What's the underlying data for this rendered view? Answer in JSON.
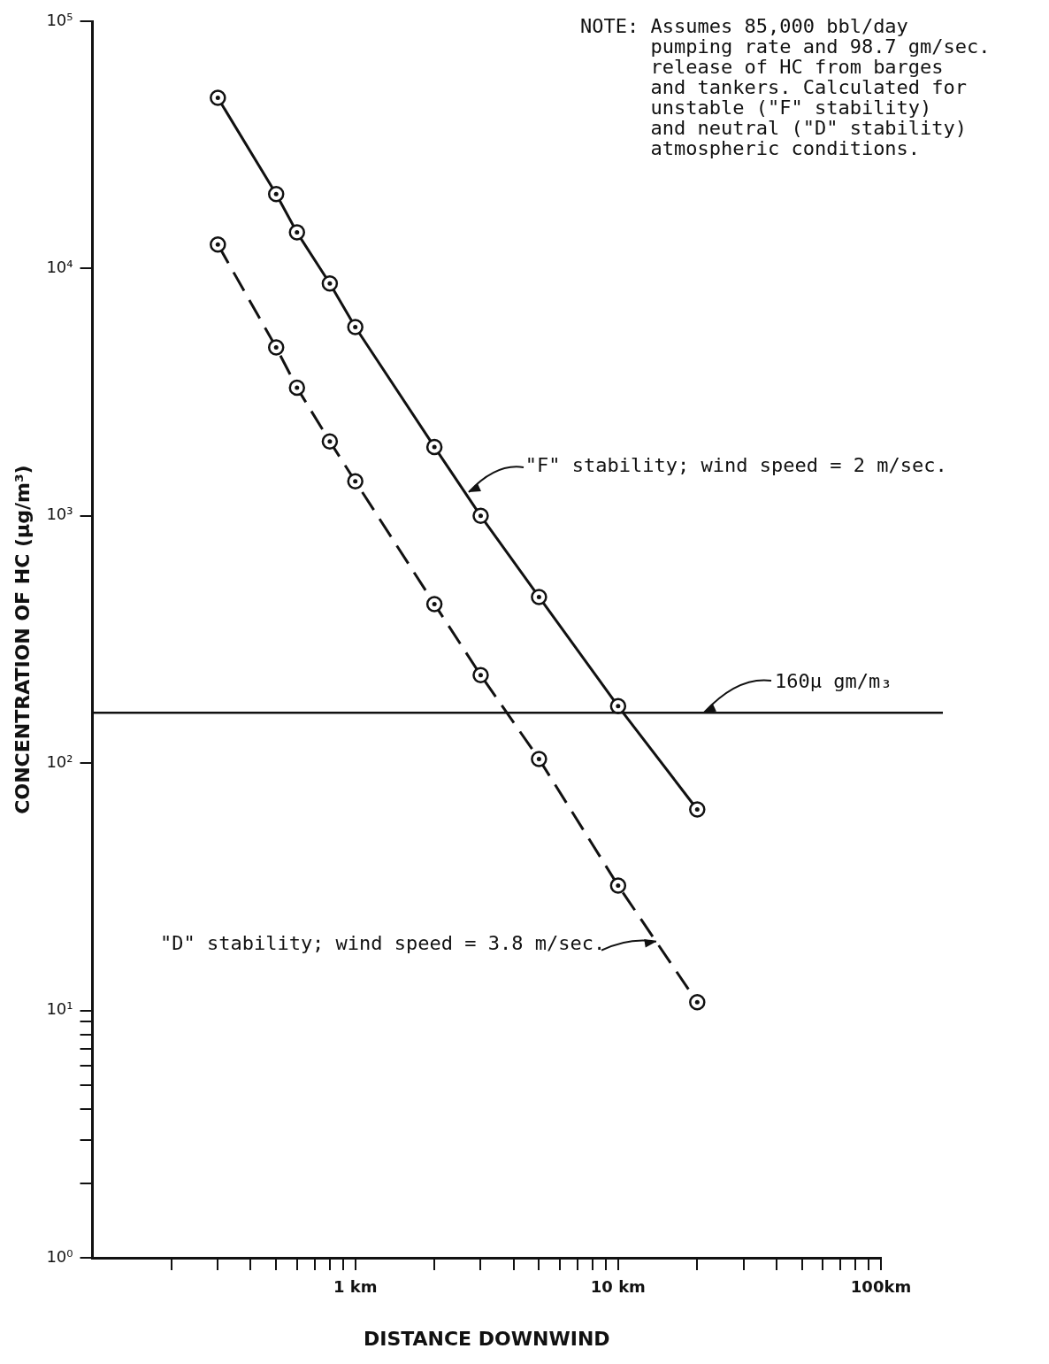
{
  "chart_data": {
    "type": "line",
    "xlabel": "DISTANCE DOWNWIND",
    "ylabel": "CONCENTRATION OF HC (μg/m³)",
    "log": "xy",
    "grid": false,
    "legend": false,
    "marker": "circle",
    "xlim": [
      0.1,
      100
    ],
    "xticks": [
      {
        "value": 0.2,
        "label": null
      },
      {
        "value": 0.3,
        "label": null
      },
      {
        "value": 0.4,
        "label": null
      },
      {
        "value": 0.5,
        "label": null
      },
      {
        "value": 0.6,
        "label": null
      },
      {
        "value": 0.7,
        "label": null
      },
      {
        "value": 0.8,
        "label": null
      },
      {
        "value": 0.9,
        "label": null
      },
      {
        "value": 1,
        "label": "1 km"
      },
      {
        "value": 2,
        "label": null
      },
      {
        "value": 3,
        "label": null
      },
      {
        "value": 4,
        "label": null
      },
      {
        "value": 5,
        "label": null
      },
      {
        "value": 6,
        "label": null
      },
      {
        "value": 7,
        "label": null
      },
      {
        "value": 8,
        "label": null
      },
      {
        "value": 9,
        "label": null
      },
      {
        "value": 10,
        "label": "10 km"
      },
      {
        "value": 20,
        "label": null
      },
      {
        "value": 30,
        "label": null
      },
      {
        "value": 40,
        "label": null
      },
      {
        "value": 50,
        "label": null
      },
      {
        "value": 60,
        "label": null
      },
      {
        "value": 70,
        "label": null
      },
      {
        "value": 80,
        "label": null
      },
      {
        "value": 90,
        "label": null
      },
      {
        "value": 100,
        "label": "100km"
      }
    ],
    "ylim": [
      1,
      100000
    ],
    "yticks": [
      {
        "value": 1,
        "label": "10⁰"
      },
      {
        "value": 2,
        "label": null
      },
      {
        "value": 3,
        "label": null
      },
      {
        "value": 4,
        "label": null
      },
      {
        "value": 5,
        "label": null
      },
      {
        "value": 6,
        "label": null
      },
      {
        "value": 7,
        "label": null
      },
      {
        "value": 8,
        "label": null
      },
      {
        "value": 9,
        "label": null
      },
      {
        "value": 10,
        "label": "10¹"
      },
      {
        "value": 100,
        "label": "10²"
      },
      {
        "value": 1000,
        "label": "10³"
      },
      {
        "value": 10000,
        "label": "10⁴"
      },
      {
        "value": 100000,
        "label": "10⁵"
      }
    ],
    "x": [
      0.3,
      0.5,
      0.6,
      0.8,
      1,
      2,
      3,
      5,
      10,
      20
    ],
    "series": [
      {
        "color": "#111111",
        "line_style": "solid",
        "values": [
          49000,
          20000,
          14000,
          8700,
          5800,
          1900,
          1000,
          470,
          170,
          65
        ]
      },
      {
        "color": "#111111",
        "line_style": "dashed",
        "values": [
          12500,
          4800,
          3300,
          2000,
          1380,
          440,
          227,
          104,
          32,
          10.8
        ]
      }
    ],
    "ref_lines": [
      {
        "axis": "y",
        "value": 160,
        "label": "160μ gm/m₃",
        "color": "#111111"
      }
    ],
    "annotations": [
      {
        "text": "\"F\" stability; wind speed = 2 m/sec.",
        "x": 2.7,
        "y": 1250
      },
      {
        "text": "\"D\" stability; wind speed = 3.8 m/sec.",
        "x": 14,
        "y": 19
      },
      "NOTE: Assumes 85,000 bbl/day\n      pumping rate and 98.7 gm/sec.\n      release of HC from barges\n      and tankers. Calculated for\n      unstable (\"F\" stability)\n      and neutral (\"D\" stability)\n      atmospheric conditions."
    ]
  }
}
